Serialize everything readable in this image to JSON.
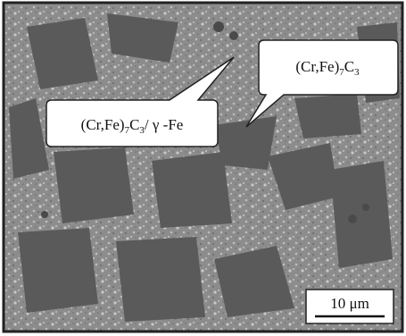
{
  "callouts": [
    {
      "parts": [
        "(Cr,Fe)",
        "7",
        "C",
        "3"
      ]
    },
    {
      "parts": [
        "(Cr,Fe)",
        "7",
        "C",
        "3",
        "/ γ -Fe"
      ]
    }
  ],
  "scale_bar": {
    "label": "10 μm"
  }
}
